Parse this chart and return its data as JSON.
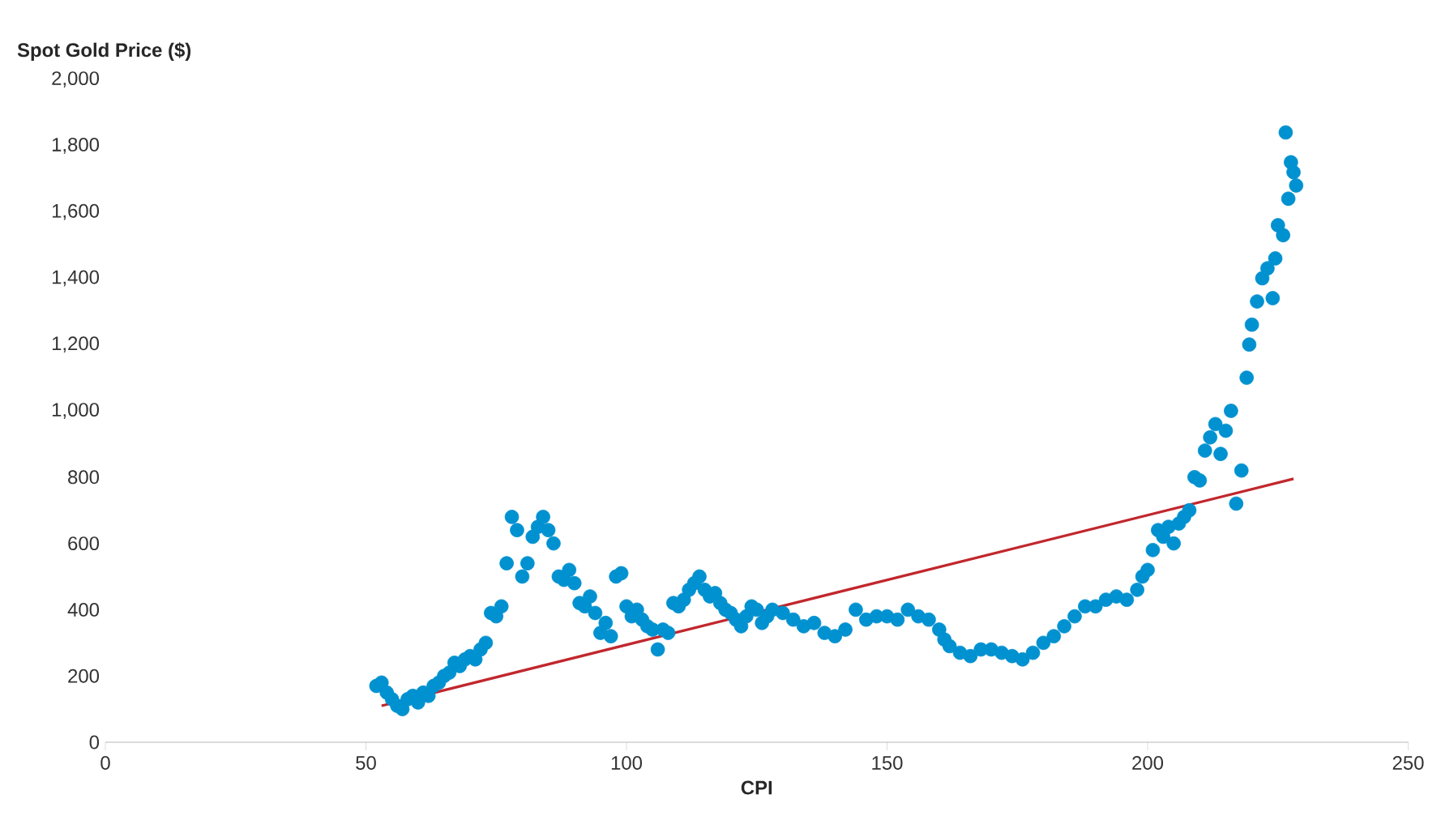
{
  "chart_data": {
    "type": "scatter",
    "ylabel": "Spot Gold Price ($)",
    "xlabel": "CPI",
    "xlim": [
      0,
      250
    ],
    "xticks": [
      0,
      50,
      100,
      150,
      200,
      250
    ],
    "ylim": [
      0,
      2000
    ],
    "yticks": [
      0,
      200,
      400,
      600,
      800,
      {
        "value": 1000,
        "label": "1,000"
      },
      {
        "value": 1200,
        "label": "1,200"
      },
      {
        "value": 1400,
        "label": "1,400"
      },
      {
        "value": 1600,
        "label": "1,600"
      },
      {
        "value": 1800,
        "label": "1,800"
      },
      {
        "value": 2000,
        "label": "2,000"
      }
    ],
    "grid": false,
    "series": [
      {
        "color": "#0091d0",
        "marker": "circle",
        "x": [
          52,
          53,
          54,
          55,
          56,
          57,
          58,
          59,
          60,
          61,
          62,
          63,
          64,
          65,
          66,
          67,
          68,
          69,
          70,
          71,
          72,
          73,
          74,
          75,
          76,
          77,
          78,
          79,
          80,
          81,
          82,
          83,
          84,
          85,
          86,
          87,
          88,
          89,
          90,
          91,
          92,
          93,
          94,
          95,
          96,
          97,
          98,
          99,
          100,
          101,
          102,
          103,
          104,
          105,
          106,
          107,
          108,
          109,
          110,
          111,
          112,
          113,
          114,
          115,
          116,
          117,
          118,
          119,
          120,
          121,
          122,
          123,
          124,
          125,
          126,
          127,
          128,
          130,
          132,
          134,
          136,
          138,
          140,
          142,
          144,
          146,
          148,
          150,
          152,
          154,
          156,
          158,
          160,
          161,
          162,
          164,
          166,
          168,
          170,
          172,
          174,
          176,
          178,
          180,
          182,
          184,
          186,
          188,
          190,
          192,
          194,
          196,
          198,
          199,
          200,
          201,
          202,
          203,
          204,
          205,
          206,
          207,
          208,
          209,
          210,
          211,
          212,
          213,
          214,
          215,
          216,
          217,
          218,
          219,
          219.5,
          220,
          221,
          222,
          223,
          224,
          224.5,
          225,
          226,
          226.5,
          227,
          227.5,
          228,
          228.5
        ],
        "values": [
          170,
          180,
          150,
          130,
          110,
          100,
          130,
          140,
          120,
          150,
          140,
          170,
          180,
          200,
          210,
          240,
          230,
          250,
          260,
          250,
          280,
          300,
          390,
          380,
          410,
          540,
          680,
          640,
          500,
          540,
          620,
          650,
          680,
          640,
          600,
          500,
          490,
          520,
          480,
          420,
          410,
          440,
          390,
          330,
          360,
          320,
          500,
          510,
          410,
          380,
          400,
          370,
          350,
          340,
          280,
          340,
          330,
          420,
          410,
          430,
          460,
          480,
          500,
          460,
          440,
          450,
          420,
          400,
          390,
          370,
          350,
          380,
          410,
          400,
          360,
          380,
          400,
          390,
          370,
          350,
          360,
          330,
          320,
          340,
          400,
          370,
          380,
          380,
          370,
          400,
          380,
          370,
          340,
          310,
          290,
          270,
          260,
          280,
          280,
          270,
          260,
          250,
          270,
          300,
          320,
          350,
          380,
          410,
          410,
          430,
          440,
          430,
          460,
          500,
          520,
          580,
          640,
          620,
          650,
          600,
          660,
          680,
          700,
          800,
          790,
          880,
          920,
          960,
          870,
          940,
          1000,
          720,
          820,
          1100,
          1200,
          1260,
          1330,
          1400,
          1430,
          1340,
          1460,
          1560,
          1530,
          1840,
          1640,
          1750,
          1720,
          1680
        ]
      },
      {
        "type": "line",
        "color": "#c1272d",
        "marker": "none",
        "x": [
          53,
          228
        ],
        "values": [
          110,
          795
        ]
      }
    ]
  }
}
